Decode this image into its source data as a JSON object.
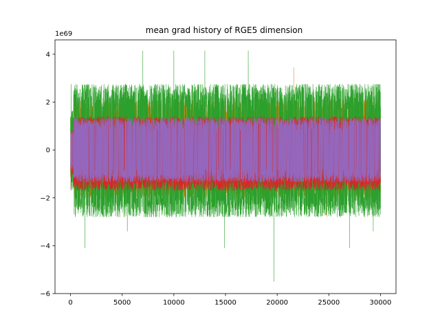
{
  "chart_data": {
    "type": "line",
    "title": "mean grad history of RGE5 dimension",
    "xlabel": "",
    "ylabel": "",
    "y_offset_text": "1e69",
    "xlim": [
      -1500,
      31500
    ],
    "ylim": [
      -6,
      4.6
    ],
    "x_ticks": [
      0,
      5000,
      10000,
      15000,
      20000,
      25000,
      30000
    ],
    "x_tick_labels": [
      "0",
      "5000",
      "10000",
      "15000",
      "20000",
      "25000",
      "30000"
    ],
    "y_ticks": [
      -6,
      -4,
      -2,
      0,
      2,
      4
    ],
    "y_tick_labels": [
      "−6",
      "−4",
      "−2",
      "0",
      "2",
      "4"
    ],
    "grid": false,
    "legend": "none",
    "n_steps": 30000,
    "series": [
      {
        "color": "#1f77b4",
        "core_band": [
          -1.0,
          1.4
        ],
        "noise": 0.3,
        "spikes": [],
        "warmup_end": 300
      },
      {
        "color": "#ff7f0e",
        "core_band": [
          -2.0,
          2.1
        ],
        "noise": 0.5,
        "spikes": [
          [
            21600,
            3.45
          ],
          [
            5200,
            -2.8
          ],
          [
            24800,
            -2.8
          ]
        ],
        "warmup_end": 300
      },
      {
        "color": "#2ca02c",
        "core_band": [
          -2.8,
          2.75
        ],
        "noise": 0.9,
        "spikes": [
          [
            7000,
            4.15
          ],
          [
            10000,
            4.15
          ],
          [
            13000,
            4.15
          ],
          [
            17200,
            4.15
          ],
          [
            1400,
            -4.1
          ],
          [
            14900,
            -4.1
          ],
          [
            19700,
            -5.5
          ],
          [
            27000,
            -4.1
          ],
          [
            29300,
            -3.4
          ],
          [
            5500,
            -3.4
          ]
        ],
        "warmup_end": 300
      },
      {
        "color": "#d62728",
        "core_band": [
          -1.7,
          1.4
        ],
        "noise": 0.3,
        "spikes": [],
        "warmup_end": 300
      },
      {
        "color": "#9467bd",
        "core_band": [
          -1.35,
          1.35
        ],
        "noise": 0.1,
        "spikes": [],
        "warmup_end": 300
      }
    ]
  }
}
